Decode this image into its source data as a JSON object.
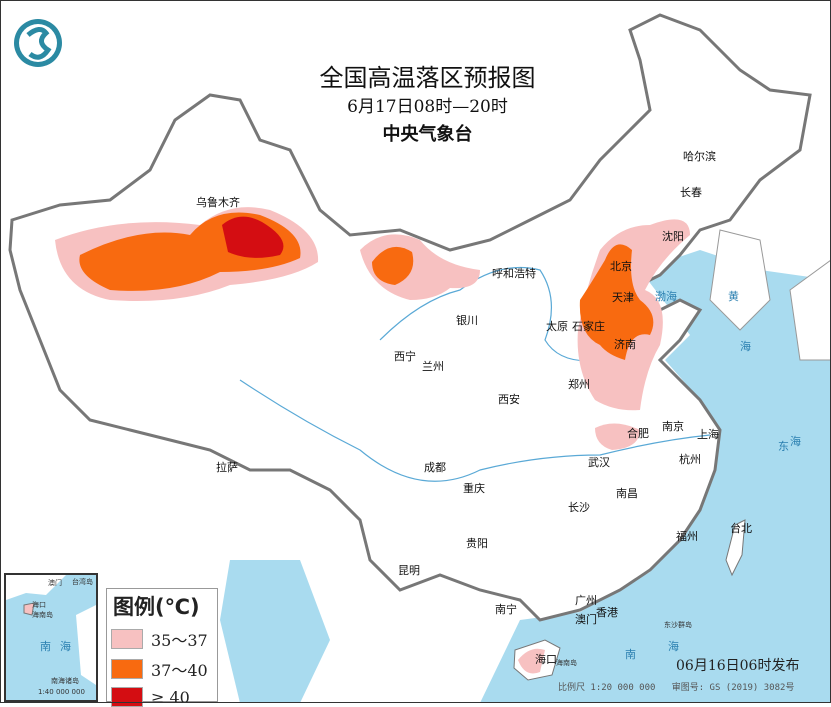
{
  "header": {
    "title": "全国高温落区预报图",
    "period": "6月17日08时—20时",
    "issuer": "中央气象台",
    "logo_icon": "cma-logo-icon"
  },
  "legend": {
    "title": "图例(℃)",
    "items": [
      {
        "label": "35～37",
        "color": "#f7c1c1"
      },
      {
        "label": "37～40",
        "color": "#f86a10"
      },
      {
        "label": "≥ 40",
        "color": "#d40d12"
      }
    ]
  },
  "cities": [
    "哈尔滨",
    "长春",
    "沈阳",
    "乌鲁木齐",
    "呼和浩特",
    "北京",
    "天津",
    "石家庄",
    "太原",
    "济南",
    "银川",
    "西宁",
    "兰州",
    "郑州",
    "西安",
    "合肥",
    "南京",
    "上海",
    "杭州",
    "武汉",
    "成都",
    "重庆",
    "拉萨",
    "南昌",
    "长沙",
    "福州",
    "台北",
    "贵阳",
    "昆明",
    "南宁",
    "广州",
    "香港",
    "澳门",
    "海口"
  ],
  "places": {
    "hainan": "海南岛",
    "dongsha": "东沙群岛"
  },
  "seas": {
    "bohai": "渤海",
    "huanghai1": "黄",
    "huanghai2": "海",
    "donghai1": "东",
    "donghai2": "海",
    "nanhai1": "南",
    "nanhai2": "海"
  },
  "inset": {
    "sea1": "南",
    "sea2": "海",
    "label": "南海诸岛",
    "scale": "1:40 000 000",
    "haikou": "海口",
    "hainan": "海南岛",
    "taiwan": "台湾岛",
    "aomen": "澳门"
  },
  "footer": {
    "issued": "06月16日06时发布",
    "scale": "比例尺 1:20 000 000",
    "map_no": "审图号: GS (2019) 3082号"
  },
  "colors": {
    "sea": "#a9dbef",
    "land": "#ffffff",
    "border": "#777777",
    "river": "#5aa9d6"
  }
}
